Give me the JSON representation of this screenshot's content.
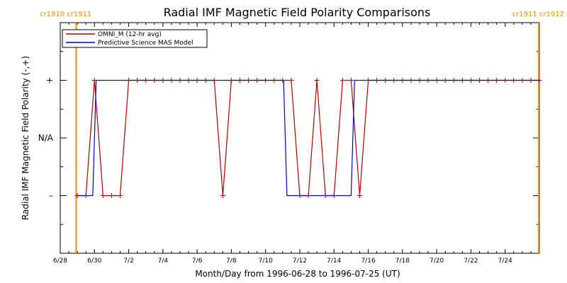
{
  "chart_data": {
    "type": "line",
    "title": "Radial IMF Magnetic Field Polarity Comparisons",
    "xlabel": "Month/Day from 1996-06-28 to 1996-07-25 (UT)",
    "ylabel": "Radial IMF Magnetic Field Polarity (-,+)",
    "x_unit": "day of July 1996 (UT); 0 = 1996-06-30 00:00",
    "xlim": [
      -2,
      26
    ],
    "ylim": [
      -2,
      2
    ],
    "y_ticks": [
      {
        "value": 1,
        "label": "+"
      },
      {
        "value": 0,
        "label": "N/A"
      },
      {
        "value": -1,
        "label": "–"
      }
    ],
    "x_ticks": [
      {
        "value": -2,
        "label": "6/28"
      },
      {
        "value": 0,
        "label": "6/30"
      },
      {
        "value": 2,
        "label": "7/2"
      },
      {
        "value": 4,
        "label": "7/4"
      },
      {
        "value": 6,
        "label": "7/6"
      },
      {
        "value": 8,
        "label": "7/8"
      },
      {
        "value": 10,
        "label": "7/10"
      },
      {
        "value": 12,
        "label": "7/12"
      },
      {
        "value": 14,
        "label": "7/14"
      },
      {
        "value": 16,
        "label": "7/16"
      },
      {
        "value": 18,
        "label": "7/18"
      },
      {
        "value": 20,
        "label": "7/20"
      },
      {
        "value": 22,
        "label": "7/22"
      },
      {
        "value": 24,
        "label": "7/24"
      }
    ],
    "carrington_markers": [
      {
        "x": -1.07,
        "label": "cr1910 cr1911",
        "label_side": "left"
      },
      {
        "x": 25.96,
        "label": "cr1911 cr1912",
        "label_side": "right"
      }
    ],
    "legend_position": "top-left",
    "series": [
      {
        "name": "OMNI_M (12-hr avg)",
        "color": "#b20000",
        "markers": "plus",
        "x": [
          -1.0,
          -0.5,
          0.0,
          0.5,
          1.0,
          1.5,
          2.0,
          2.5,
          3.0,
          3.5,
          4.0,
          4.5,
          5.0,
          5.5,
          6.0,
          6.5,
          7.0,
          7.5,
          8.0,
          8.5,
          9.0,
          9.5,
          10.0,
          10.5,
          11.0,
          11.5,
          12.0,
          12.5,
          13.0,
          13.5,
          14.0,
          14.5,
          15.0,
          15.5,
          16.0,
          16.5,
          17.0,
          17.5,
          18.0,
          18.5,
          19.0,
          19.5,
          20.0,
          20.5,
          21.0,
          21.5,
          22.0,
          22.5,
          23.0,
          23.5,
          24.0,
          24.5,
          25.0,
          25.5,
          26.0
        ],
        "y": [
          -1,
          -1,
          1,
          -1,
          -1,
          -1,
          1,
          1,
          1,
          1,
          1,
          1,
          1,
          1,
          1,
          1,
          1,
          -1,
          1,
          1,
          1,
          1,
          1,
          1,
          1,
          1,
          -1,
          -1,
          1,
          -1,
          -1,
          1,
          1,
          -1,
          1,
          1,
          1,
          1,
          1,
          1,
          1,
          1,
          1,
          1,
          1,
          1,
          1,
          1,
          1,
          1,
          1,
          1,
          1,
          1,
          1
        ]
      },
      {
        "name": "Predictive Science MAS Model",
        "color": "#0000cc",
        "markers": "none",
        "x": [
          -1.0,
          -0.1,
          0.1,
          11.05,
          11.25,
          15.0,
          15.2,
          26.0
        ],
        "y": [
          -1,
          -1,
          1,
          1,
          -1,
          -1,
          1,
          1
        ]
      }
    ]
  }
}
